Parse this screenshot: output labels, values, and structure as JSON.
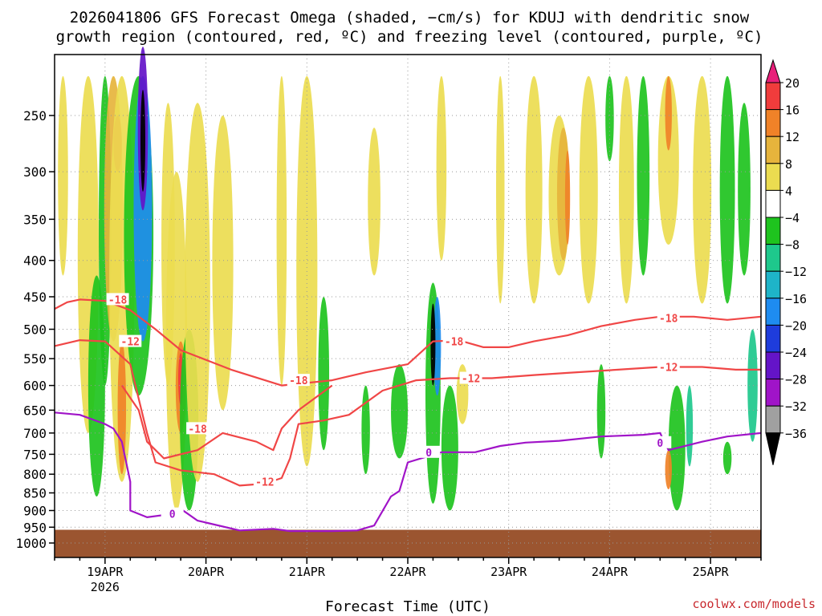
{
  "title": {
    "line1": "2026041806 GFS Forecast Omega (shaded, −cm/s) for KDUJ with dendritic snow",
    "line2": "growth region (contoured, red, ºC) and freezing level (contoured, purple, ºC)"
  },
  "chart_data": {
    "type": "time-height contour",
    "title": "2026041806 GFS Forecast Omega (shaded, −cm/s) for KDUJ with dendritic snow growth region (contoured, red, ºC) and freezing level (contoured, purple, ºC)",
    "xlabel": "Forecast Time (UTC)",
    "ylabel": "",
    "x_ticks": [
      "19APR",
      "20APR",
      "21APR",
      "22APR",
      "23APR",
      "24APR",
      "25APR"
    ],
    "x_tick_sublabel": "2026",
    "xlim_hours": [
      6,
      174
    ],
    "y_ticks": [
      250,
      300,
      350,
      400,
      450,
      500,
      550,
      600,
      650,
      700,
      750,
      800,
      850,
      900,
      950,
      1000
    ],
    "ylim_hpa": [
      1000,
      200
    ],
    "y_scale": "log-pressure",
    "colorbar": {
      "label_values": [
        20,
        16,
        12,
        8,
        4,
        -4,
        -8,
        -12,
        -16,
        -20,
        -24,
        -28,
        -32,
        -36
      ],
      "bins": [
        {
          "range": "> 20",
          "color": "#e8207a"
        },
        {
          "range": "16 to 20",
          "color": "#f03c3c"
        },
        {
          "range": "12 to 16",
          "color": "#f08228"
        },
        {
          "range": "8 to 12",
          "color": "#e6b43c"
        },
        {
          "range": "4 to 8",
          "color": "#ebdc50"
        },
        {
          "range": "-4 to 4",
          "color": "#ffffff"
        },
        {
          "range": "-8 to -4",
          "color": "#1ec31e"
        },
        {
          "range": "-12 to -8",
          "color": "#1ec88c"
        },
        {
          "range": "-16 to -12",
          "color": "#1eb4c8"
        },
        {
          "range": "-20 to -16",
          "color": "#1e8cf0"
        },
        {
          "range": "-24 to -20",
          "color": "#1e3cdc"
        },
        {
          "range": "-28 to -24",
          "color": "#6414c8"
        },
        {
          "range": "-32 to -28",
          "color": "#a014c8"
        },
        {
          "range": "-36 to -32",
          "color": "#a0a0a0"
        },
        {
          "range": "< -36",
          "color": "#000000"
        }
      ]
    },
    "contour_labels": {
      "minus18": "-18",
      "minus12": "-12",
      "zero": "0"
    },
    "contours": [
      {
        "name": "dgz-top-minus18",
        "color": "#f04646",
        "level": -18,
        "points": [
          [
            6,
            468
          ],
          [
            9,
            458
          ],
          [
            12,
            454
          ],
          [
            18,
            456
          ],
          [
            24,
            470
          ],
          [
            30,
            500
          ],
          [
            36,
            535
          ],
          [
            48,
            570
          ],
          [
            60,
            600
          ],
          [
            72,
            590
          ],
          [
            80,
            575
          ],
          [
            90,
            560
          ],
          [
            96,
            520
          ],
          [
            102,
            518
          ],
          [
            108,
            530
          ],
          [
            114,
            530
          ],
          [
            120,
            520
          ],
          [
            128,
            510
          ],
          [
            136,
            495
          ],
          [
            144,
            485
          ],
          [
            150,
            480
          ],
          [
            158,
            480
          ],
          [
            166,
            485
          ],
          [
            174,
            480
          ]
        ]
      },
      {
        "name": "dgz-minus18-lower-loop",
        "color": "#f04646",
        "level": -18,
        "points": [
          [
            22,
            600
          ],
          [
            26,
            650
          ],
          [
            28,
            720
          ],
          [
            32,
            760
          ],
          [
            40,
            740
          ],
          [
            46,
            700
          ],
          [
            54,
            720
          ],
          [
            58,
            740
          ],
          [
            60,
            690
          ],
          [
            64,
            650
          ],
          [
            72,
            600
          ]
        ]
      },
      {
        "name": "dgz-bottom-minus12",
        "color": "#f04646",
        "level": -12,
        "points": [
          [
            6,
            528
          ],
          [
            12,
            518
          ],
          [
            18,
            520
          ],
          [
            24,
            560
          ],
          [
            28,
            700
          ],
          [
            30,
            770
          ],
          [
            36,
            790
          ],
          [
            44,
            800
          ],
          [
            50,
            830
          ],
          [
            56,
            825
          ],
          [
            60,
            810
          ],
          [
            62,
            760
          ],
          [
            64,
            680
          ],
          [
            70,
            672
          ],
          [
            76,
            660
          ],
          [
            84,
            610
          ],
          [
            92,
            590
          ],
          [
            100,
            586
          ],
          [
            110,
            586
          ],
          [
            120,
            580
          ],
          [
            128,
            576
          ],
          [
            140,
            570
          ],
          [
            150,
            565
          ],
          [
            160,
            565
          ],
          [
            168,
            570
          ],
          [
            174,
            570
          ]
        ]
      },
      {
        "name": "freezing-level-0",
        "color": "#a014c8",
        "level": 0,
        "points": [
          [
            6,
            655
          ],
          [
            12,
            660
          ],
          [
            18,
            680
          ],
          [
            20,
            690
          ],
          [
            22,
            720
          ],
          [
            24,
            820
          ],
          [
            24,
            900
          ],
          [
            28,
            920
          ],
          [
            34,
            910
          ],
          [
            36,
            895
          ],
          [
            40,
            930
          ],
          [
            50,
            960
          ],
          [
            58,
            955
          ],
          [
            62,
            962
          ],
          [
            72,
            962
          ],
          [
            78,
            960
          ],
          [
            82,
            945
          ],
          [
            86,
            860
          ],
          [
            88,
            845
          ],
          [
            90,
            770
          ],
          [
            98,
            745
          ],
          [
            106,
            745
          ],
          [
            112,
            730
          ],
          [
            118,
            722
          ],
          [
            126,
            718
          ],
          [
            136,
            708
          ],
          [
            146,
            704
          ],
          [
            150,
            700
          ],
          [
            152,
            740
          ],
          [
            160,
            720
          ],
          [
            166,
            708
          ],
          [
            174,
            700
          ]
        ]
      }
    ],
    "shading_note": "Omega shaded per colorbar; strongest ascent (blue/purple/black) near 19APR 12Z aloft and 22APR 06Z mid-levels; descent (yellow/orange/red) bands through the period; ground (below ~960 hPa) shaded brown."
  },
  "credit": "coolwx.com/models"
}
